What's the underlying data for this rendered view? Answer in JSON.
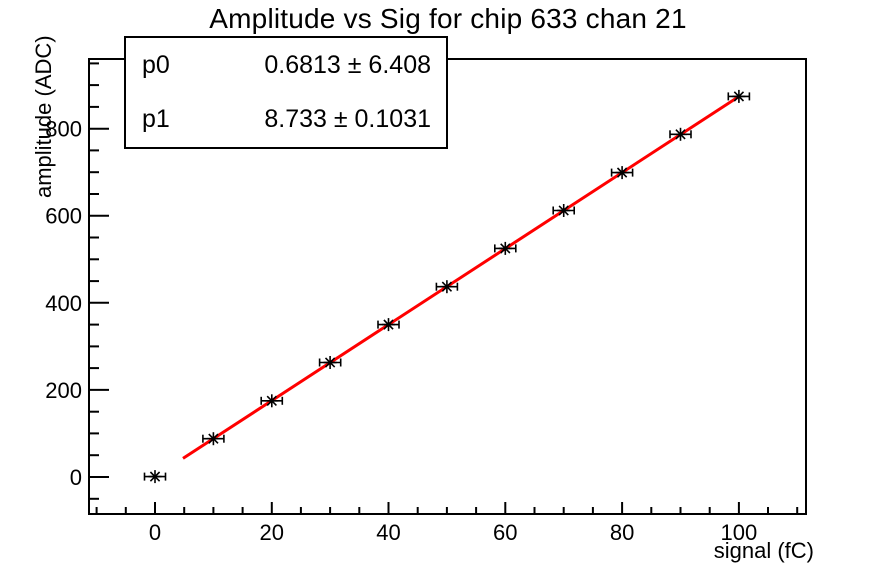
{
  "window": {
    "background": "#ffffff"
  },
  "chart_data": {
    "type": "scatter",
    "title": "Amplitude vs Sig for chip 633 chan 21",
    "xlabel": "signal (fC)",
    "ylabel": "amplitude (ADC)",
    "x": [
      0,
      10,
      20,
      30,
      40,
      50,
      60,
      70,
      80,
      90,
      100
    ],
    "y": [
      1,
      88,
      175,
      263,
      350,
      437,
      525,
      612,
      699,
      787,
      874
    ],
    "x_err": 1.8,
    "xlim": [
      -11.3,
      111.5
    ],
    "ylim": [
      -85,
      960
    ],
    "xticks": [
      0,
      20,
      40,
      60,
      80,
      100
    ],
    "yticks": [
      0,
      200,
      400,
      600,
      800
    ],
    "x_minor_step": 5,
    "y_minor_step": 50,
    "grid": false,
    "legend": "none",
    "marker": "asterisk",
    "marker_color": "#000000",
    "axis_color": "#000000",
    "fit": {
      "type": "linear",
      "p0": 0.6813,
      "p1": 8.733,
      "x_range": [
        4.8,
        100
      ],
      "color": "#ff0000"
    }
  },
  "stats_box": {
    "rows": [
      {
        "label": "p0",
        "value": "0.6813 ± 6.408"
      },
      {
        "label": "p1",
        "value": "8.733 ± 0.1031"
      }
    ]
  }
}
